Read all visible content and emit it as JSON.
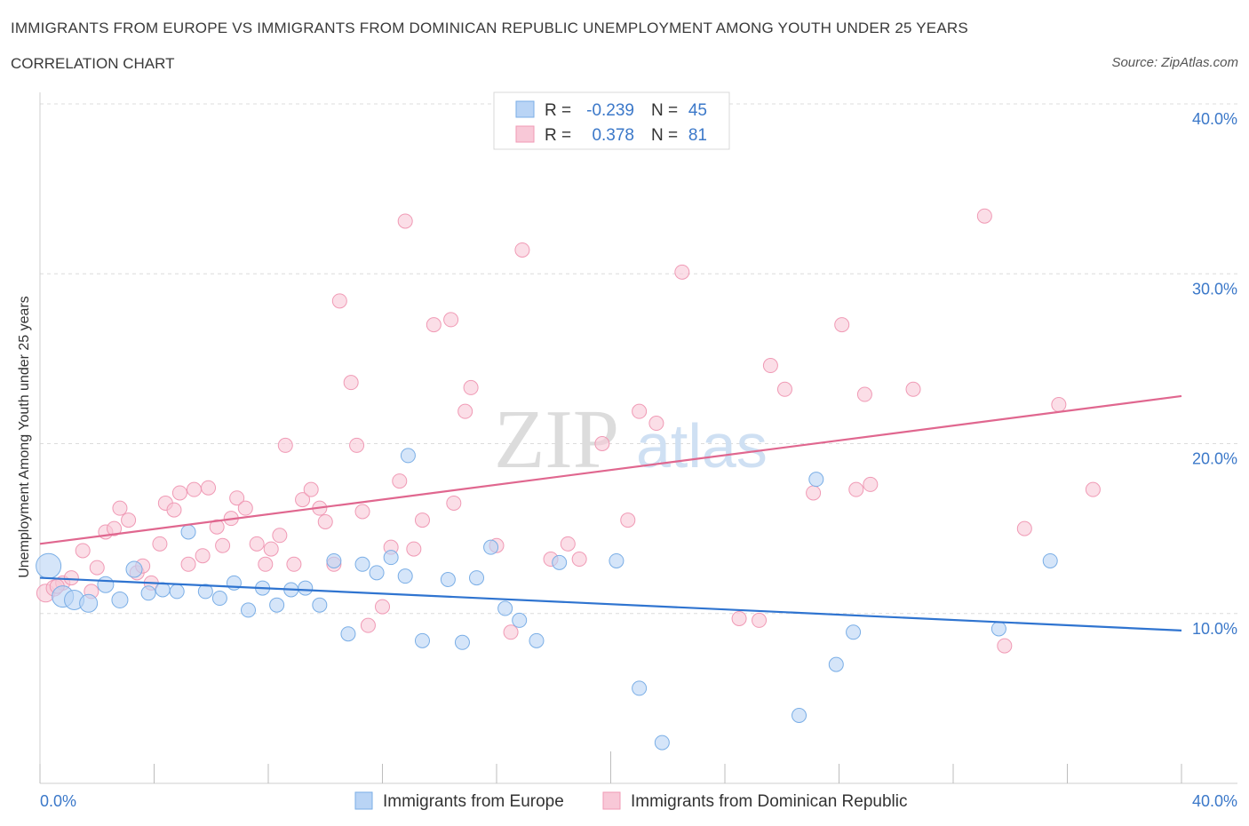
{
  "chart_data": {
    "type": "scatter",
    "title": "IMMIGRANTS FROM EUROPE VS IMMIGRANTS FROM DOMINICAN REPUBLIC UNEMPLOYMENT AMONG YOUTH UNDER 25 YEARS",
    "subtitle": "CORRELATION CHART",
    "source": "Source: ZipAtlas.com",
    "watermark": "ZIPatlas",
    "xlabel": "",
    "ylabel": "Unemployment Among Youth under 25 years",
    "xlim": [
      0,
      40
    ],
    "ylim": [
      0,
      40
    ],
    "x_tick_labels": {
      "left": "0.0%",
      "right": "40.0%"
    },
    "y_tick_labels": [
      "10.0%",
      "20.0%",
      "30.0%",
      "40.0%"
    ],
    "y_ticks": [
      10,
      20,
      30,
      40
    ],
    "legend_box": {
      "europe": {
        "r_label": "R =",
        "r_value": "-0.239",
        "n_label": "N =",
        "n_value": "45"
      },
      "dominican": {
        "r_label": "R =",
        "r_value": "0.378",
        "n_label": "N =",
        "n_value": "81"
      }
    },
    "series": [
      {
        "name": "Immigrants from Europe",
        "color": "#7aaee6",
        "fill": "#b9d4f5",
        "line_color": "#2f74d0",
        "trend": [
          [
            0,
            12.1
          ],
          [
            40,
            9.0
          ]
        ],
        "points": [
          [
            0.3,
            12.8,
            14
          ],
          [
            0.8,
            11.0,
            12
          ],
          [
            1.2,
            10.8,
            11
          ],
          [
            1.7,
            10.6,
            10
          ],
          [
            2.3,
            11.7,
            9
          ],
          [
            2.8,
            10.8,
            9
          ],
          [
            3.3,
            12.6,
            9
          ],
          [
            3.8,
            11.2,
            8
          ],
          [
            4.3,
            11.4,
            8
          ],
          [
            4.8,
            11.3,
            8
          ],
          [
            5.2,
            14.8,
            8
          ],
          [
            5.8,
            11.3,
            8
          ],
          [
            6.3,
            10.9,
            8
          ],
          [
            6.8,
            11.8,
            8
          ],
          [
            7.3,
            10.2,
            8
          ],
          [
            7.8,
            11.5,
            8
          ],
          [
            8.3,
            10.5,
            8
          ],
          [
            8.8,
            11.4,
            8
          ],
          [
            9.3,
            11.5,
            8
          ],
          [
            9.8,
            10.5,
            8
          ],
          [
            10.3,
            13.1,
            8
          ],
          [
            10.8,
            8.8,
            8
          ],
          [
            11.3,
            12.9,
            8
          ],
          [
            11.8,
            12.4,
            8
          ],
          [
            12.3,
            13.3,
            8
          ],
          [
            12.8,
            12.2,
            8
          ],
          [
            12.9,
            19.3,
            8
          ],
          [
            13.4,
            8.4,
            8
          ],
          [
            14.3,
            12.0,
            8
          ],
          [
            14.8,
            8.3,
            8
          ],
          [
            15.3,
            12.1,
            8
          ],
          [
            15.8,
            13.9,
            8
          ],
          [
            16.3,
            10.3,
            8
          ],
          [
            16.8,
            9.6,
            8
          ],
          [
            17.4,
            8.4,
            8
          ],
          [
            18.2,
            13.0,
            8
          ],
          [
            20.2,
            13.1,
            8
          ],
          [
            21.0,
            5.6,
            8
          ],
          [
            21.8,
            2.4,
            8
          ],
          [
            26.6,
            4.0,
            8
          ],
          [
            27.2,
            17.9,
            8
          ],
          [
            27.9,
            7.0,
            8
          ],
          [
            28.5,
            8.9,
            8
          ],
          [
            33.6,
            9.1,
            8
          ],
          [
            35.4,
            13.1,
            8
          ]
        ]
      },
      {
        "name": "Immigrants from Dominican Republic",
        "color": "#f09ab5",
        "fill": "#f8c8d7",
        "line_color": "#e0678f",
        "trend": [
          [
            0,
            14.1
          ],
          [
            40,
            22.8
          ]
        ],
        "points": [
          [
            0.2,
            11.2,
            10
          ],
          [
            0.5,
            11.5,
            9
          ],
          [
            0.8,
            11.8,
            8
          ],
          [
            1.1,
            12.1,
            8
          ],
          [
            1.5,
            13.7,
            8
          ],
          [
            1.8,
            11.3,
            8
          ],
          [
            2.0,
            12.7,
            8
          ],
          [
            2.3,
            14.8,
            8
          ],
          [
            2.6,
            15.0,
            8
          ],
          [
            2.8,
            16.2,
            8
          ],
          [
            3.1,
            15.5,
            8
          ],
          [
            3.4,
            12.4,
            8
          ],
          [
            3.6,
            12.8,
            8
          ],
          [
            3.9,
            11.8,
            8
          ],
          [
            4.2,
            14.1,
            8
          ],
          [
            4.4,
            16.5,
            8
          ],
          [
            4.7,
            16.1,
            8
          ],
          [
            4.9,
            17.1,
            8
          ],
          [
            5.2,
            12.9,
            8
          ],
          [
            5.4,
            17.3,
            8
          ],
          [
            5.7,
            13.4,
            8
          ],
          [
            5.9,
            17.4,
            8
          ],
          [
            6.2,
            15.1,
            8
          ],
          [
            6.4,
            14.0,
            8
          ],
          [
            6.7,
            15.6,
            8
          ],
          [
            6.9,
            16.8,
            8
          ],
          [
            7.2,
            16.2,
            8
          ],
          [
            7.6,
            14.1,
            8
          ],
          [
            7.9,
            12.9,
            8
          ],
          [
            8.1,
            13.8,
            8
          ],
          [
            8.4,
            14.6,
            8
          ],
          [
            8.6,
            19.9,
            8
          ],
          [
            8.9,
            12.9,
            8
          ],
          [
            9.2,
            16.7,
            8
          ],
          [
            9.5,
            17.3,
            8
          ],
          [
            9.8,
            16.2,
            8
          ],
          [
            10.0,
            15.4,
            8
          ],
          [
            10.3,
            12.9,
            8
          ],
          [
            10.5,
            28.4,
            8
          ],
          [
            10.9,
            23.6,
            8
          ],
          [
            11.1,
            19.9,
            8
          ],
          [
            11.3,
            16.0,
            8
          ],
          [
            11.5,
            9.3,
            8
          ],
          [
            12.0,
            10.4,
            8
          ],
          [
            12.3,
            13.9,
            8
          ],
          [
            12.6,
            17.8,
            8
          ],
          [
            12.8,
            33.1,
            8
          ],
          [
            13.1,
            13.8,
            8
          ],
          [
            13.4,
            15.5,
            8
          ],
          [
            13.8,
            27.0,
            8
          ],
          [
            14.4,
            27.3,
            8
          ],
          [
            14.5,
            16.5,
            8
          ],
          [
            14.9,
            21.9,
            8
          ],
          [
            15.1,
            23.3,
            8
          ],
          [
            16.0,
            14.0,
            8
          ],
          [
            16.5,
            8.9,
            8
          ],
          [
            16.9,
            31.4,
            8
          ],
          [
            17.9,
            13.2,
            8
          ],
          [
            18.5,
            14.1,
            8
          ],
          [
            18.9,
            13.2,
            8
          ],
          [
            19.7,
            20.0,
            8
          ],
          [
            20.6,
            15.5,
            8
          ],
          [
            21.0,
            21.9,
            8
          ],
          [
            21.6,
            21.2,
            8
          ],
          [
            22.5,
            30.1,
            8
          ],
          [
            24.5,
            9.7,
            8
          ],
          [
            25.2,
            9.6,
            8
          ],
          [
            25.6,
            24.6,
            8
          ],
          [
            26.1,
            23.2,
            8
          ],
          [
            27.1,
            17.1,
            8
          ],
          [
            28.1,
            27.0,
            8
          ],
          [
            28.6,
            17.3,
            8
          ],
          [
            29.1,
            17.6,
            8
          ],
          [
            28.9,
            22.9,
            8
          ],
          [
            30.6,
            23.2,
            8
          ],
          [
            33.1,
            33.4,
            8
          ],
          [
            33.8,
            8.1,
            8
          ],
          [
            34.5,
            15.0,
            8
          ],
          [
            35.7,
            22.3,
            8
          ],
          [
            36.9,
            17.3,
            8
          ],
          [
            0.6,
            11.6,
            8
          ]
        ]
      }
    ]
  }
}
